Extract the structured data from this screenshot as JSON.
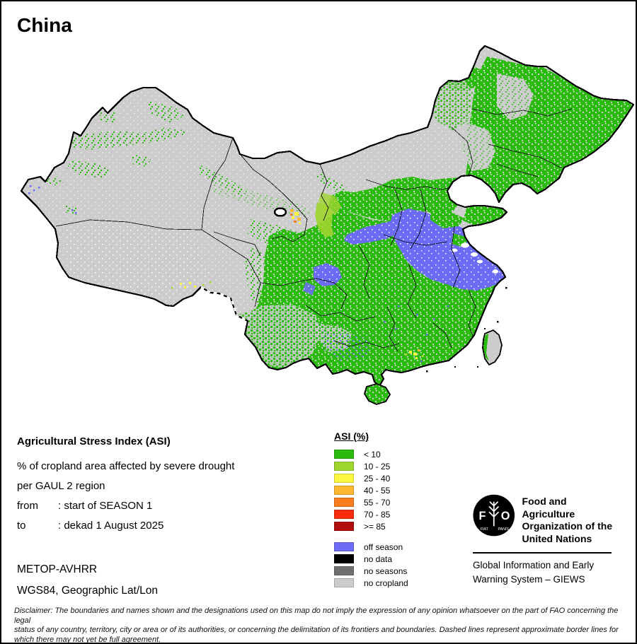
{
  "title": "China",
  "info": {
    "heading": "Agricultural Stress Index (ASI)",
    "line1": "% of cropland area affected by severe drought",
    "line2": "per GAUL 2 region",
    "from_label": "from",
    "from_value": ": start of SEASON 1",
    "to_label": "to",
    "to_value": ": dekad 1 August 2025",
    "sensor": "METOP-AVHRR",
    "projection": "WGS84, Geographic Lat/Lon"
  },
  "legend": {
    "title": "ASI (%)",
    "classes": [
      {
        "label": "< 10",
        "color": "#2bbb0e"
      },
      {
        "label": "10 - 25",
        "color": "#9fd52f"
      },
      {
        "label": "25 - 40",
        "color": "#fbf73e"
      },
      {
        "label": "40 - 55",
        "color": "#fcb931"
      },
      {
        "label": "55 - 70",
        "color": "#f87d1e"
      },
      {
        "label": "70 - 85",
        "color": "#f92d0e"
      },
      {
        "label": ">= 85",
        "color": "#b10e0e"
      }
    ],
    "extras": [
      {
        "label": "off season",
        "color": "#6b6bf3"
      },
      {
        "label": "no data",
        "color": "#000000"
      },
      {
        "label": "no seasons",
        "color": "#6f6f6f"
      },
      {
        "label": "no cropland",
        "color": "#cccccc"
      }
    ]
  },
  "fao": {
    "logo_left": "F",
    "logo_right": "O",
    "motto_left": "FIAT",
    "motto_right": "PANIS",
    "name_lines": [
      "Food and Agriculture",
      "Organization of the",
      "United Nations"
    ],
    "giews_lines": [
      "Global Information and Early",
      "Warning System – GIEWS"
    ]
  },
  "disclaimer_lines": [
    "Disclaimer: The boundaries and names shown and the designations used on this map do not imply the expression of any opinion whatsoever on the part of FAO concerning the legal",
    "status of any country, territory, city or area or of its authorities, or concerning the delimitation of its frontiers and boundaries. Dashed lines represent approximate border lines for",
    "which there may not yet be full agreement."
  ]
}
